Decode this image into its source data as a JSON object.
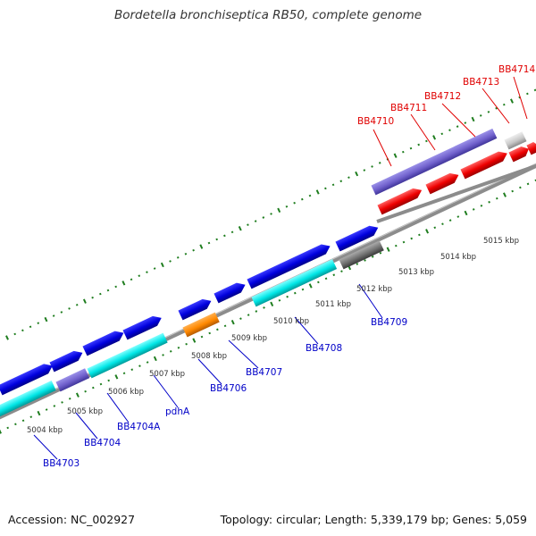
{
  "title": "Bordetella bronchiseptica RB50, complete genome",
  "footer": {
    "accession": "Accession: NC_002927",
    "summary": "Topology: circular; Length: 5,339,179 bp; Genes: 5,059"
  },
  "colors": {
    "forward_label": "#0000c8",
    "reverse_label": "#e00000",
    "tick": "#1e7d1e",
    "backbone": "#8c8c8c"
  },
  "scale_labels": [
    "5004 kbp",
    "5005 kbp",
    "5006 kbp",
    "5007 kbp",
    "5008 kbp",
    "5009 kbp",
    "5010 kbp",
    "5011 kbp",
    "5012 kbp",
    "5013 kbp",
    "5014 kbp",
    "5015 kbp"
  ],
  "bottom_genes": [
    "BB4703",
    "BB4704",
    "BB4704A",
    "pdhA",
    "BB4706",
    "BB4707",
    "BB4708",
    "BB4709"
  ],
  "top_genes": [
    "BB4710",
    "BB4711",
    "BB4712",
    "BB4713",
    "BB4714"
  ]
}
